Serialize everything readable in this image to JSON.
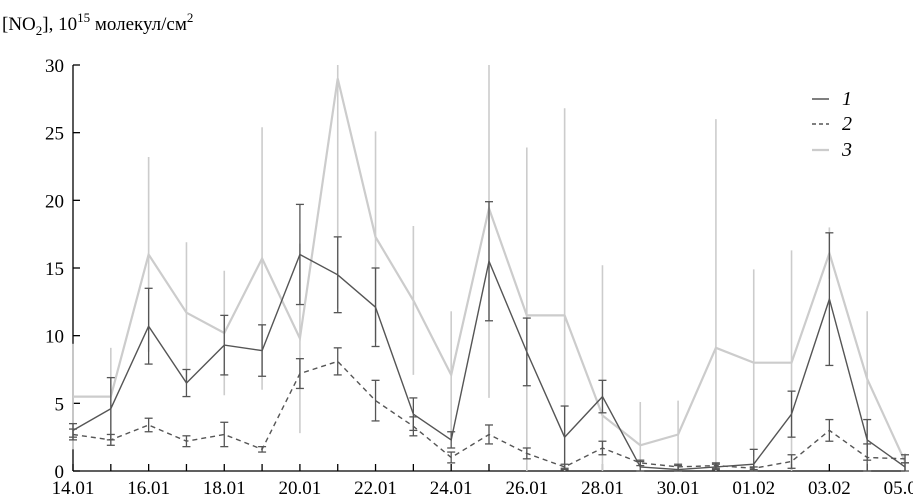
{
  "chart_data": {
    "type": "line",
    "ylabel": {
      "main": "[NO",
      "sub": "2",
      "mid": "], 10",
      "sup": "15",
      "unit": " молекул/см",
      "sup2": "2"
    },
    "ylim": [
      0,
      30
    ],
    "yticks": [
      "0",
      "5",
      "10",
      "15",
      "20",
      "25",
      "30"
    ],
    "x": [
      "14.01",
      "15.01",
      "16.01",
      "17.01",
      "18.01",
      "19.01",
      "20.01",
      "21.01",
      "22.01",
      "23.01",
      "24.01",
      "25.01",
      "26.01",
      "27.01",
      "28.01",
      "29.01",
      "30.01",
      "31.01",
      "01.02",
      "02.02",
      "03.02",
      "04.02",
      "05.02"
    ],
    "xticks": [
      "14.01",
      "16.01",
      "18.01",
      "20.01",
      "22.01",
      "24.01",
      "26.01",
      "28.01",
      "30.01",
      "01.02",
      "03.02",
      "05.02"
    ],
    "legend_position": "top-right",
    "series": [
      {
        "name": "1",
        "color": "#555555",
        "dash": "solid",
        "values": [
          3.0,
          4.6,
          10.7,
          6.5,
          9.3,
          8.9,
          16.0,
          14.5,
          12.1,
          4.2,
          2.3,
          15.5,
          8.8,
          2.5,
          5.5,
          0.3,
          0.1,
          0.3,
          0.5,
          4.2,
          12.7,
          2.3,
          0.3
        ],
        "err": [
          0.5,
          2.3,
          2.8,
          1.0,
          2.2,
          1.9,
          3.7,
          2.8,
          2.9,
          1.2,
          0.6,
          4.4,
          2.5,
          2.3,
          1.2,
          0.4,
          0.3,
          0.2,
          1.1,
          1.7,
          4.9,
          1.5,
          0.3
        ]
      },
      {
        "name": "2",
        "color": "#555555",
        "dash": "dashed",
        "values": [
          2.7,
          2.3,
          3.4,
          2.2,
          2.7,
          1.6,
          7.2,
          8.1,
          5.2,
          3.3,
          1.0,
          2.7,
          1.3,
          0.3,
          1.7,
          0.6,
          0.3,
          0.4,
          0.2,
          0.7,
          3.0,
          1.0,
          0.9
        ],
        "err": [
          0.4,
          0.4,
          0.5,
          0.4,
          0.9,
          0.2,
          1.1,
          1.0,
          1.5,
          0.7,
          0.4,
          0.7,
          0.4,
          0.2,
          0.5,
          0.2,
          0.2,
          0.2,
          0.1,
          0.5,
          0.8,
          1.0,
          0.3
        ]
      },
      {
        "name": "3",
        "color": "#cccccc",
        "dash": "solid",
        "values": [
          5.5,
          5.5,
          16.0,
          11.7,
          10.2,
          15.7,
          9.8,
          29.0,
          17.3,
          12.6,
          7.1,
          19.4,
          11.5,
          11.5,
          4.1,
          1.9,
          2.7,
          9.1,
          8.0,
          8.0,
          16.1,
          6.8,
          0.7
        ],
        "err": [
          3.9,
          3.6,
          7.2,
          5.2,
          4.6,
          9.7,
          7.0,
          17.0,
          7.8,
          5.5,
          4.7,
          14.0,
          12.4,
          15.3,
          11.1,
          3.2,
          2.5,
          16.9,
          6.9,
          8.3,
          1.9,
          5.0,
          0.6
        ]
      }
    ]
  }
}
